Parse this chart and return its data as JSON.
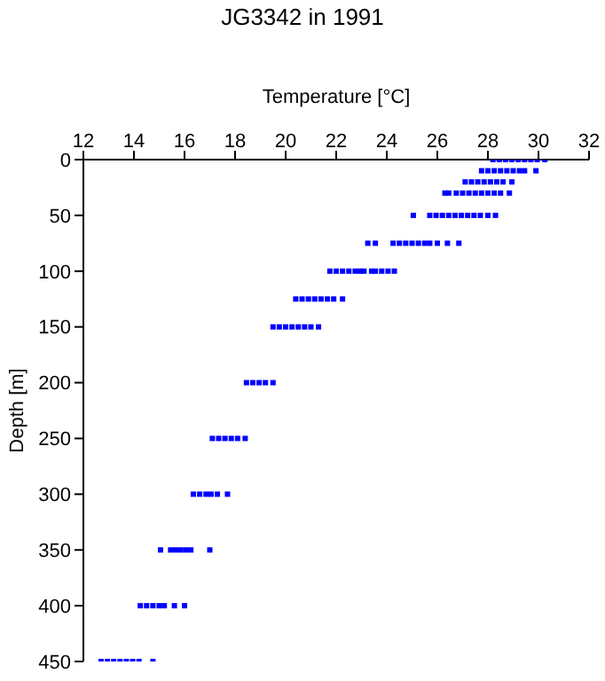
{
  "chart_data": {
    "type": "scatter",
    "title": "JG3342 in 1991",
    "xlabel": "Temperature [°C]",
    "ylabel": "Depth [m]",
    "xlim": [
      12,
      32
    ],
    "xticks": [
      12,
      14,
      16,
      18,
      20,
      22,
      24,
      26,
      28,
      30,
      32
    ],
    "ylim": [
      450,
      0
    ],
    "yticks": [
      0,
      50,
      100,
      150,
      200,
      250,
      300,
      350,
      400,
      450
    ],
    "grid": false,
    "legend": false,
    "marker": "square",
    "series": [
      {
        "color": "#0000ff",
        "x": [
          28.2,
          28.45,
          28.7,
          28.95,
          29.2,
          29.45,
          29.7,
          29.95,
          30.25,
          27.75,
          28.0,
          28.25,
          28.5,
          28.75,
          29.0,
          29.25,
          29.45,
          29.9,
          27.1,
          27.35,
          27.6,
          27.85,
          28.1,
          28.35,
          28.6,
          28.95,
          26.3,
          26.45,
          26.75,
          27.0,
          27.25,
          27.5,
          27.75,
          28.0,
          28.25,
          28.5,
          28.85,
          25.05,
          25.7,
          25.95,
          26.2,
          26.45,
          26.7,
          26.95,
          27.2,
          27.45,
          27.7,
          28.0,
          28.3,
          23.25,
          23.55,
          24.25,
          24.5,
          24.75,
          25.0,
          25.25,
          25.5,
          25.7,
          26.0,
          26.4,
          26.85,
          21.75,
          22.0,
          22.25,
          22.5,
          22.75,
          22.95,
          23.1,
          23.4,
          23.55,
          23.8,
          24.05,
          24.3,
          20.4,
          20.65,
          20.9,
          21.15,
          21.4,
          21.65,
          21.9,
          22.25,
          19.5,
          19.75,
          20.0,
          20.25,
          20.5,
          20.75,
          21.0,
          21.3,
          18.45,
          18.7,
          18.95,
          19.2,
          19.5,
          17.1,
          17.35,
          17.6,
          17.85,
          18.1,
          18.4,
          16.35,
          16.6,
          16.85,
          17.05,
          17.3,
          17.7,
          15.05,
          15.45,
          15.65,
          15.85,
          16.05,
          16.25,
          17.0,
          14.25,
          14.5,
          14.75,
          15.0,
          15.2,
          15.6,
          16.0,
          12.7,
          12.95,
          13.2,
          13.45,
          13.7,
          13.95,
          14.2,
          14.75
        ],
        "values": [
          0,
          0,
          0,
          0,
          0,
          0,
          0,
          0,
          0,
          10,
          10,
          10,
          10,
          10,
          10,
          10,
          10,
          10,
          20,
          20,
          20,
          20,
          20,
          20,
          20,
          20,
          30,
          30,
          30,
          30,
          30,
          30,
          30,
          30,
          30,
          30,
          30,
          50,
          50,
          50,
          50,
          50,
          50,
          50,
          50,
          50,
          50,
          50,
          50,
          75,
          75,
          75,
          75,
          75,
          75,
          75,
          75,
          75,
          75,
          75,
          75,
          100,
          100,
          100,
          100,
          100,
          100,
          100,
          100,
          100,
          100,
          100,
          100,
          125,
          125,
          125,
          125,
          125,
          125,
          125,
          125,
          150,
          150,
          150,
          150,
          150,
          150,
          150,
          150,
          200,
          200,
          200,
          200,
          200,
          250,
          250,
          250,
          250,
          250,
          250,
          300,
          300,
          300,
          300,
          300,
          300,
          350,
          350,
          350,
          350,
          350,
          350,
          350,
          400,
          400,
          400,
          400,
          400,
          400,
          400,
          450,
          450,
          450,
          450,
          450,
          450,
          450,
          450
        ]
      }
    ]
  }
}
